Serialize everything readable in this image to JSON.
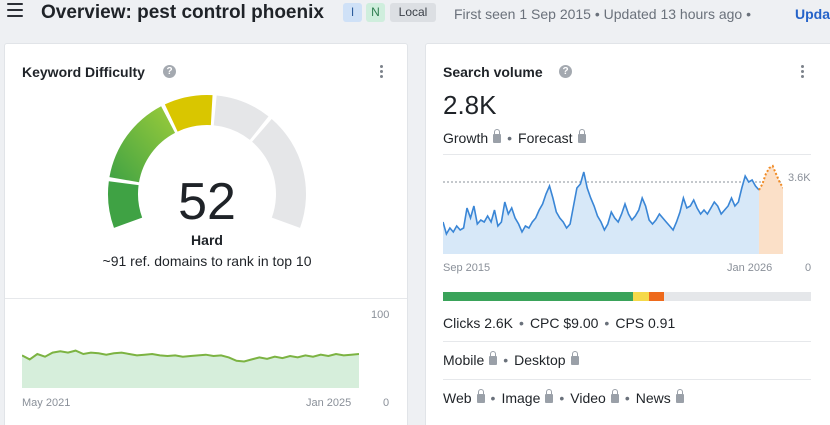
{
  "header": {
    "title": "Overview: pest control phoenix",
    "badges": {
      "intent_i": "I",
      "intent_n": "N",
      "local": "Local"
    },
    "meta": "First seen 1 Sep 2015 • Updated 13 hours ago •",
    "update_link": "Upda"
  },
  "keyword_difficulty": {
    "title": "Keyword Difficulty",
    "help": "?",
    "value": "52",
    "score": 52,
    "level": "Hard",
    "level_color": "#1f2328",
    "description": "~91 ref. domains to rank in top 10",
    "gauge_colors": [
      "#3fa244",
      "#9ccc3a",
      "#d9c600",
      "#e5e6e8"
    ],
    "trend": {
      "y_top_label": "100",
      "y_bottom_label": "0",
      "x_start_label": "May 2021",
      "x_end_label": "Jan 2025",
      "line_color": "#7cb342",
      "fill_color": "#d6eedb",
      "values": [
        48,
        42,
        50,
        46,
        52,
        54,
        52,
        55,
        50,
        52,
        51,
        49,
        51,
        52,
        50,
        48,
        49,
        50,
        48,
        47,
        48,
        46,
        47,
        48,
        49,
        47,
        48,
        45,
        40,
        39,
        42,
        45,
        43,
        46,
        44,
        47,
        45,
        48,
        46,
        49,
        47,
        50,
        48,
        49,
        50
      ]
    }
  },
  "search_volume": {
    "title": "Search volume",
    "help": "?",
    "value": "2.8K",
    "growth_label": "Growth",
    "forecast_label": "Forecast",
    "chart": {
      "ref_label": "3.6K",
      "x_start_label": "Sep 2015",
      "x_end_label": "Jan 2026",
      "y_zero_label": "0",
      "line_color": "#3a86d6",
      "fill_color": "#d7e8f8",
      "forecast_color": "#f08a24",
      "forecast_fill": "#fbe0c8",
      "values": [
        1.6,
        1.0,
        1.3,
        1.1,
        1.4,
        1.2,
        1.3,
        2.3,
        1.8,
        2.4,
        1.5,
        1.7,
        1.6,
        1.9,
        1.6,
        2.2,
        1.4,
        1.6,
        2.6,
        2.0,
        2.3,
        1.8,
        1.5,
        1.1,
        1.4,
        1.3,
        1.6,
        1.8,
        2.2,
        2.5,
        3.0,
        3.4,
        2.8,
        2.1,
        1.8,
        1.6,
        1.3,
        1.5,
        2.4,
        3.3,
        3.5,
        4.1,
        3.3,
        2.8,
        2.4,
        1.9,
        1.6,
        1.2,
        1.5,
        2.1,
        1.8,
        1.6,
        2.0,
        2.5,
        2.0,
        1.7,
        1.9,
        2.2,
        2.8,
        2.4,
        1.7,
        1.5,
        1.7,
        2.0,
        1.8,
        1.6,
        1.4,
        1.2,
        1.6,
        2.1,
        2.8,
        2.3,
        2.4,
        2.7,
        2.3,
        2.0,
        2.2,
        2.0,
        2.3,
        2.6,
        2.4,
        2.0,
        2.2,
        2.4,
        2.8,
        2.4,
        2.6,
        3.3,
        3.9,
        3.6,
        3.7,
        3.4,
        3.2
      ],
      "forecast_values": [
        3.2,
        3.5,
        4.0,
        4.3,
        4.4,
        4.0,
        3.6,
        3.3
      ]
    },
    "intent_bar": [
      {
        "share": 0.515,
        "color": "#3aa35a"
      },
      {
        "share": 0.045,
        "color": "#f5d94a"
      },
      {
        "share": 0.04,
        "color": "#ee6a1c"
      }
    ],
    "metrics": {
      "clicks": "Clicks 2.6K",
      "cpc": "CPC $9.00",
      "cps": "CPS 0.91"
    },
    "devices": {
      "mobile": "Mobile",
      "desktop": "Desktop"
    },
    "types": {
      "web": "Web",
      "image": "Image",
      "video": "Video",
      "news": "News"
    }
  }
}
